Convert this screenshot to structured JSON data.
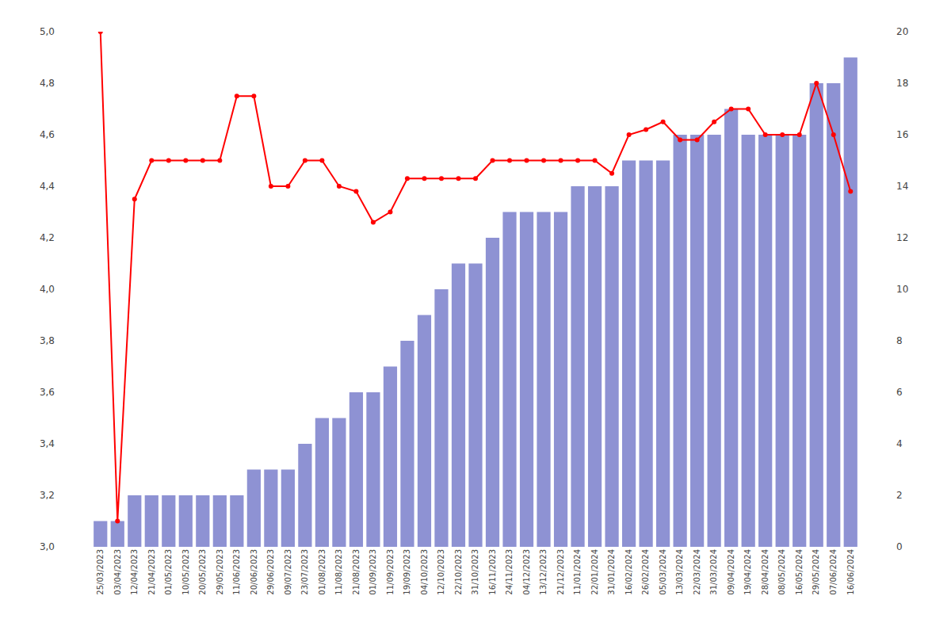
{
  "chart_data": {
    "type": "bar",
    "categories": [
      "25/03/2023",
      "03/04/2023",
      "12/04/2023",
      "21/04/2023",
      "01/05/2023",
      "10/05/2023",
      "20/05/2023",
      "29/05/2023",
      "11/06/2023",
      "20/06/2023",
      "29/06/2023",
      "09/07/2023",
      "23/07/2023",
      "01/08/2023",
      "11/08/2023",
      "21/08/2023",
      "01/09/2023",
      "11/09/2023",
      "19/09/2023",
      "04/10/2023",
      "12/10/2023",
      "22/10/2023",
      "31/10/2023",
      "16/11/2023",
      "24/11/2023",
      "04/12/2023",
      "13/12/2023",
      "21/12/2023",
      "11/01/2024",
      "22/01/2024",
      "31/01/2024",
      "16/02/2024",
      "26/02/2024",
      "05/03/2024",
      "13/03/2024",
      "22/03/2024",
      "31/03/2024",
      "09/04/2024",
      "19/04/2024",
      "28/04/2024",
      "08/05/2024",
      "16/05/2024",
      "29/05/2024",
      "07/06/2024",
      "16/06/2024"
    ],
    "series": [
      {
        "type": "bar",
        "axis": "y2",
        "color": "#7b7fcc",
        "values": [
          1,
          1,
          2,
          2,
          2,
          2,
          2,
          2,
          2,
          3,
          3,
          3,
          4,
          5,
          5,
          6,
          6,
          7,
          8,
          9,
          10,
          11,
          11,
          12,
          13,
          13,
          13,
          13,
          14,
          14,
          14,
          15,
          15,
          15,
          16,
          16,
          16,
          17,
          16,
          16,
          16,
          16,
          18,
          18,
          19
        ]
      },
      {
        "type": "line",
        "color": "#ff0000",
        "marker": "circle",
        "values": [
          5.0,
          3.1,
          4.35,
          4.5,
          4.5,
          4.5,
          4.5,
          4.5,
          4.75,
          4.75,
          4.4,
          4.4,
          4.5,
          4.5,
          4.4,
          4.38,
          4.26,
          4.3,
          4.43,
          4.43,
          4.43,
          4.43,
          4.43,
          4.5,
          4.5,
          4.5,
          4.5,
          4.5,
          4.5,
          4.5,
          4.45,
          4.6,
          4.62,
          4.65,
          4.58,
          4.58,
          4.65,
          4.7,
          4.7,
          4.6,
          4.6,
          4.6,
          4.8,
          4.6,
          4.38
        ]
      }
    ],
    "ylim": [
      3.0,
      5.0
    ],
    "yticks": [
      {
        "value": 3.0,
        "label": "3,0"
      },
      {
        "value": 3.2,
        "label": "3,2"
      },
      {
        "value": 3.4,
        "label": "3,4"
      },
      {
        "value": 3.6,
        "label": "3,6"
      },
      {
        "value": 3.8,
        "label": "3,8"
      },
      {
        "value": 4.0,
        "label": "4,0"
      },
      {
        "value": 4.2,
        "label": "4,2"
      },
      {
        "value": 4.4,
        "label": "4,4"
      },
      {
        "value": 4.6,
        "label": "4,6"
      },
      {
        "value": 4.8,
        "label": "4,8"
      },
      {
        "value": 5.0,
        "label": "5,0"
      }
    ],
    "y2lim": [
      0,
      20
    ],
    "y2ticks": [
      0,
      2,
      4,
      6,
      8,
      10,
      12,
      14,
      16,
      18,
      20
    ],
    "grid": false
  }
}
